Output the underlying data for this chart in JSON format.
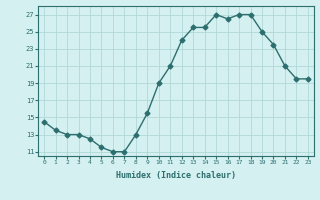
{
  "x": [
    0,
    1,
    2,
    3,
    4,
    5,
    6,
    7,
    8,
    9,
    10,
    11,
    12,
    13,
    14,
    15,
    16,
    17,
    18,
    19,
    20,
    21,
    22,
    23
  ],
  "y": [
    14.5,
    13.5,
    13.0,
    13.0,
    12.5,
    11.5,
    11.0,
    11.0,
    13.0,
    15.5,
    19.0,
    21.0,
    24.0,
    25.5,
    25.5,
    27.0,
    26.5,
    27.0,
    27.0,
    25.0,
    23.5,
    21.0,
    19.5,
    19.5
  ],
  "line_color": "#2d6e6e",
  "bg_color": "#d4f0f0",
  "grid_color": "#b0d8d8",
  "text_color": "#2d6e6e",
  "xlabel": "Humidex (Indice chaleur)",
  "yticks": [
    11,
    13,
    15,
    17,
    19,
    21,
    23,
    25,
    27
  ],
  "xticks": [
    0,
    1,
    2,
    3,
    4,
    5,
    6,
    7,
    8,
    9,
    10,
    11,
    12,
    13,
    14,
    15,
    16,
    17,
    18,
    19,
    20,
    21,
    22,
    23
  ],
  "xlim": [
    -0.5,
    23.5
  ],
  "ylim": [
    10.5,
    28.0
  ],
  "marker": "D",
  "markersize": 2.5,
  "linewidth": 1.0
}
